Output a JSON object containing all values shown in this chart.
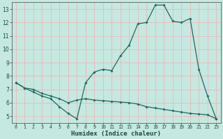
{
  "xlabel": "Humidex (Indice chaleur)",
  "background_color": "#c5e8e0",
  "grid_color": "#e8b8b8",
  "line_color": "#1a6a60",
  "xlim": [
    -0.5,
    23.5
  ],
  "ylim": [
    4.5,
    13.5
  ],
  "x_ticks": [
    0,
    1,
    2,
    3,
    4,
    5,
    6,
    7,
    8,
    9,
    10,
    11,
    12,
    13,
    14,
    15,
    16,
    17,
    18,
    19,
    20,
    21,
    22,
    23
  ],
  "y_ticks": [
    5,
    6,
    7,
    8,
    9,
    10,
    11,
    12,
    13
  ],
  "series1_x": [
    0,
    1,
    2,
    3,
    4,
    5,
    6,
    7,
    8,
    9,
    10,
    11,
    12,
    13,
    14,
    15,
    16,
    17,
    18,
    19,
    20,
    21,
    22,
    23
  ],
  "series1_y": [
    7.5,
    7.1,
    6.8,
    6.5,
    6.3,
    5.7,
    5.2,
    4.8,
    7.5,
    8.3,
    8.5,
    8.4,
    9.5,
    10.3,
    11.9,
    12.0,
    13.3,
    13.3,
    12.1,
    12.0,
    12.3,
    8.5,
    6.5,
    4.8
  ],
  "series2_x": [
    0,
    1,
    2,
    3,
    4,
    5,
    6,
    7,
    8,
    9,
    10,
    11,
    12,
    13,
    14,
    15,
    16,
    17,
    18,
    19,
    20,
    21,
    22,
    23
  ],
  "series2_y": [
    7.5,
    7.1,
    7.0,
    6.7,
    6.5,
    6.3,
    6.0,
    6.2,
    6.3,
    6.2,
    6.15,
    6.1,
    6.05,
    6.0,
    5.9,
    5.7,
    5.6,
    5.5,
    5.4,
    5.3,
    5.2,
    5.15,
    5.1,
    4.8
  ]
}
